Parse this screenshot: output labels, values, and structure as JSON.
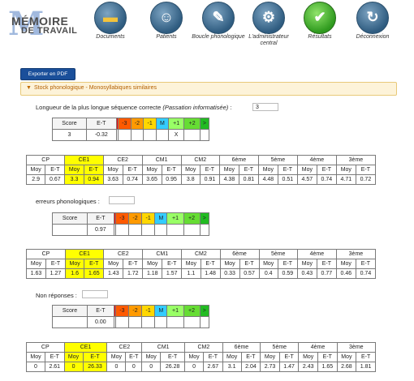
{
  "logo": {
    "big": "M",
    "line1": "MÉMOIRE",
    "line2": "DE TRAVAIL"
  },
  "nav": [
    {
      "label": "Documents",
      "icon": "folder-icon"
    },
    {
      "label": "Patients",
      "icon": "person-icon"
    },
    {
      "label": "Boucle phonologique",
      "icon": "pen-icon"
    },
    {
      "label": "L'administrateur central",
      "icon": "gear-icon"
    },
    {
      "label": "Résultats",
      "icon": "checkmark-icon"
    },
    {
      "label": "Déconnexion",
      "icon": "logout-icon"
    }
  ],
  "export_label": "Exporter en PDF",
  "section_title": "Stock phonologique - Monosyllabiques similaires",
  "score_headers": [
    "Score",
    "E-T",
    "",
    "-3",
    "-2",
    "-1",
    "M",
    "+1",
    "+2",
    ">"
  ],
  "norm_groups": [
    "CP",
    "CE1",
    "CE2",
    "CM1",
    "CM2",
    "6ème",
    "5ème",
    "4ème",
    "3ème"
  ],
  "norm_sub": [
    "Moy",
    "E-T"
  ],
  "blocks": [
    {
      "label": "Longueur de la plus longue séquence correcte",
      "label_italic": "(Passation informatisée)",
      "suffix": " :",
      "input_value": "3",
      "score_row": [
        "3",
        "-0.32",
        "",
        "",
        "",
        "",
        "",
        "X",
        "",
        "",
        ""
      ],
      "norms": [
        "2.9",
        "0.67",
        "3.3",
        "0.94",
        "3.63",
        "0.74",
        "3.65",
        "0.95",
        "3.8",
        "0.91",
        "4.38",
        "0.81",
        "4.48",
        "0.51",
        "4.57",
        "0.74",
        "4.71",
        "0.72"
      ]
    },
    {
      "label": "erreurs phonologiques",
      "label_italic": "",
      "suffix": " :",
      "input_value": "",
      "score_row": [
        "",
        "0.97",
        "",
        "",
        "",
        "",
        "",
        "",
        "",
        "",
        ""
      ],
      "norms": [
        "1.63",
        "1.27",
        "1.6",
        "1.65",
        "1.43",
        "1.72",
        "1.18",
        "1.57",
        "1.1",
        "1.48",
        "0.33",
        "0.57",
        "0.4",
        "0.59",
        "0.43",
        "0.77",
        "0.46",
        "0.74"
      ]
    },
    {
      "label": "Non réponses",
      "label_italic": "",
      "suffix": " :",
      "input_value": "",
      "score_row": [
        "",
        "0.00",
        "",
        "",
        "",
        "",
        "",
        "",
        "",
        "",
        ""
      ],
      "norms": [
        "0",
        "2.61",
        "0",
        "26.33",
        "0",
        "0",
        "0",
        "26.28",
        "0",
        "2.67",
        "3.1",
        "2.04",
        "2.73",
        "1.47",
        "2.43",
        "1.65",
        "2.68",
        "1.81"
      ]
    }
  ],
  "colors": {
    "accent": "#1a4f9a",
    "highlight": "#ffff00"
  }
}
